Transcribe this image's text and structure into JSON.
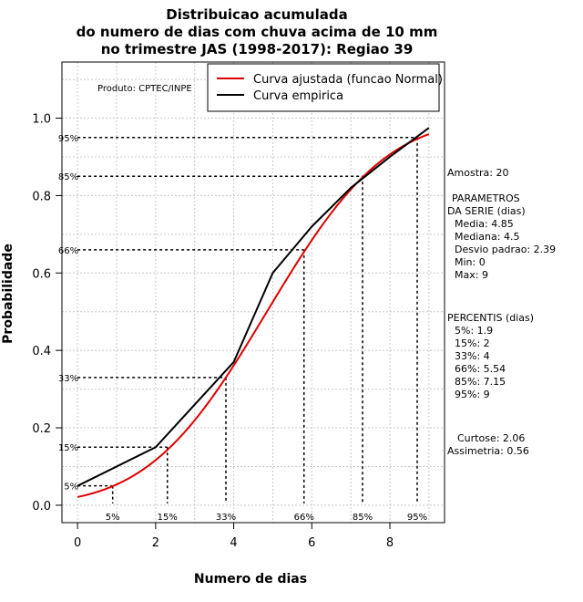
{
  "chart_data": {
    "type": "line",
    "title": [
      "Distribuicao acumulada",
      "do numero de dias com chuva acima de 10 mm",
      "no trimestre JAS (1998-2017): Regiao 39"
    ],
    "xlabel": "Numero de dias",
    "ylabel": "Probabilidade",
    "xlim": [
      -0.4,
      9.4
    ],
    "ylim": [
      -0.045,
      1.145
    ],
    "xticks": [
      0,
      2,
      4,
      6,
      8
    ],
    "yticks": [
      0.0,
      0.2,
      0.4,
      0.6,
      0.8,
      1.0
    ],
    "xtick_labels": [
      "0",
      "2",
      "4",
      "6",
      "8"
    ],
    "ytick_labels": [
      "0.0",
      "0.2",
      "0.4",
      "0.6",
      "0.8",
      "1.0"
    ],
    "grid": true,
    "legend_position": "top-right",
    "series": [
      {
        "name": "Curva ajustada (funcao Normal)",
        "color": "#dd0000",
        "distribution": {
          "mean": 4.85,
          "sd": 2.39
        },
        "x_range": [
          0,
          9
        ]
      },
      {
        "name": "Curva empirica",
        "color": "#000000",
        "x": [
          0,
          2,
          4,
          5,
          6,
          7,
          8,
          9
        ],
        "values": [
          0.05,
          0.15,
          0.37,
          0.6,
          0.72,
          0.82,
          0.9,
          0.975
        ]
      }
    ],
    "percentile_guides": [
      {
        "label": "5%",
        "p": 0.05,
        "x": 0.9
      },
      {
        "label": "15%",
        "p": 0.15,
        "x": 2.3
      },
      {
        "label": "33%",
        "p": 0.33,
        "x": 3.8
      },
      {
        "label": "66%",
        "p": 0.66,
        "x": 5.8
      },
      {
        "label": "85%",
        "p": 0.85,
        "x": 7.3
      },
      {
        "label": "95%",
        "p": 0.95,
        "x": 8.7
      }
    ],
    "annotation": "Produto: CPTEC/INPE"
  },
  "side_panel": {
    "amostra": "Amostra: 20",
    "param_title_1": "PARAMETROS",
    "param_title_2": "DA SERIE (dias)",
    "params": [
      "Media: 4.85",
      "Mediana: 4.5",
      "Desvio padrao: 2.39",
      "Min: 0",
      "Max: 9"
    ],
    "perc_title": "PERCENTIS (dias)",
    "percentis": [
      "5%: 1.9",
      "15%: 2",
      "33%: 4",
      "66%: 5.54",
      "85%: 7.15",
      "95%: 9"
    ],
    "curtose": "Curtose: 2.06",
    "assimetria": "Assimetria: 0.56"
  }
}
